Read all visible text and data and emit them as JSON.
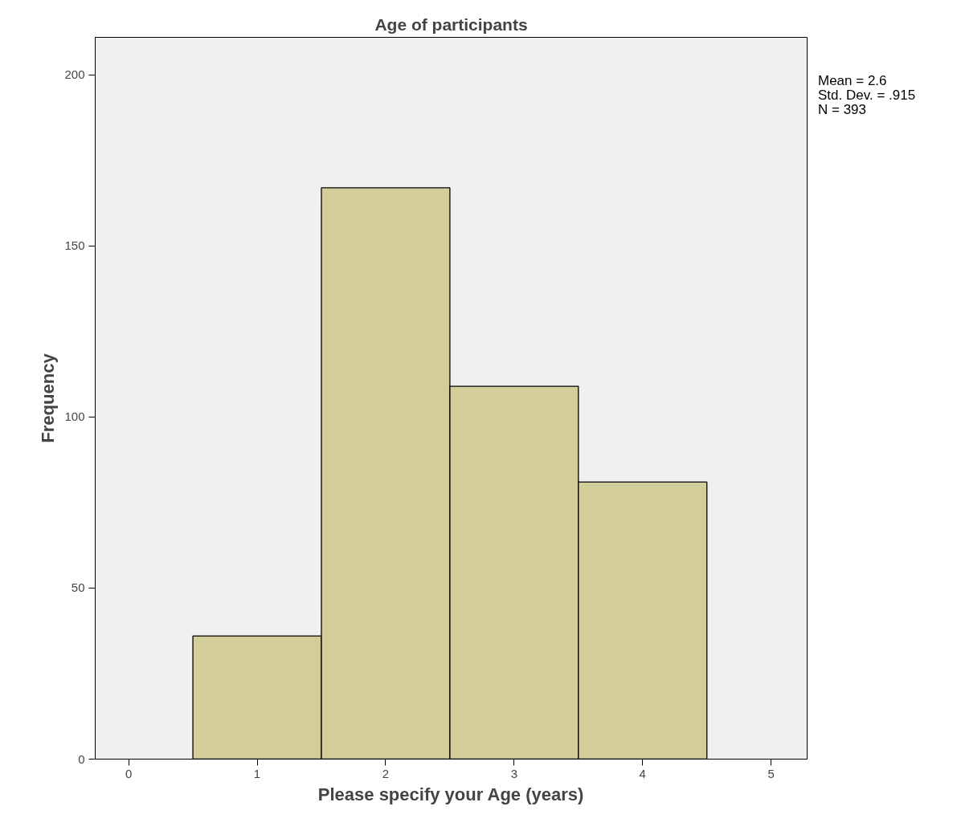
{
  "chart_data": {
    "type": "histogram",
    "title": "Age of participants",
    "xlabel": "Please specify your Age (years)",
    "ylabel": "Frequency",
    "bins": [
      0.5,
      1.5,
      2.5,
      3.5,
      4.5
    ],
    "values": [
      36,
      167,
      109,
      81
    ],
    "color": "#d3ce99",
    "xlim": [
      -0.26,
      5.28
    ],
    "xticks": [
      0,
      1,
      2,
      3,
      4,
      5
    ],
    "ylim": [
      0,
      211
    ],
    "yticks": [
      0,
      50,
      100,
      150,
      200
    ],
    "grid": false,
    "annotations": [
      "Mean = 2.6",
      "Std. Dev. = .915",
      "N = 393"
    ]
  }
}
